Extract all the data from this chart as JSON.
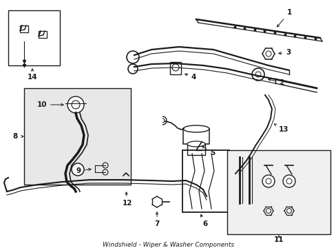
{
  "bg_color": "#ffffff",
  "line_color": "#1a1a1a",
  "box_fill": "#e8e8e8",
  "label_fontsize": 7.5,
  "figsize": [
    4.89,
    3.6
  ],
  "dpi": 100
}
